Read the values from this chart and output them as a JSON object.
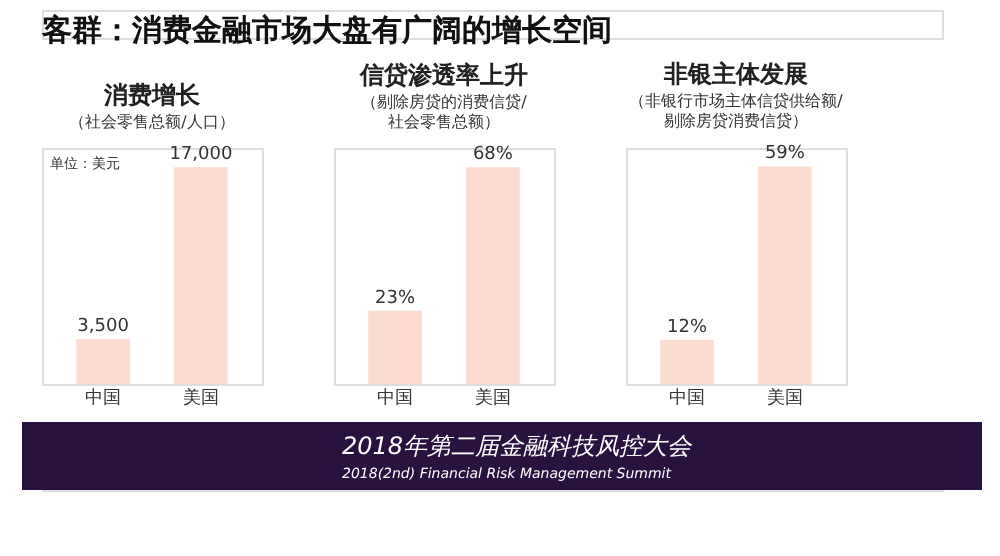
{
  "chart_data": [
    {
      "type": "bar",
      "title": "消费增长",
      "subtitle": "（社会零售总额/人口）",
      "categories": [
        "中国",
        "美国"
      ],
      "values": [
        3500,
        17000
      ],
      "value_labels": [
        "3,500",
        "17,000"
      ],
      "color": "#fcdcd0",
      "annotations": [
        "客群：消费金融市场大盘有广阔的增长空间",
        "单位：美元",
        "2018年第二届金融科技风控大会",
        "2018(2nd) Financial Risk Management Summit"
      ],
      "ylim": [
        0,
        18500
      ],
      "tick_labels": "x"
    },
    {
      "type": "bar",
      "title": "信贷渗透率上升",
      "subtitle": "（剔除房贷的消费信贷/\n社会零售总额）",
      "categories": [
        "中国",
        "美国"
      ],
      "values": [
        23,
        68
      ],
      "value_labels": [
        "23%",
        "68%"
      ],
      "color": "#fcdcd0",
      "ylim": [
        0,
        74
      ],
      "tick_labels": "x"
    },
    {
      "type": "bar",
      "title": "非银主体发展",
      "subtitle": "（非银行市场主体信贷供给额/\n剔除房贷消费信贷）",
      "categories": [
        "中国",
        "美国"
      ],
      "values": [
        12,
        59
      ],
      "value_labels": [
        "12%",
        "59%"
      ],
      "color": "#fcdcd0",
      "ylim": [
        0,
        64
      ],
      "tick_labels": "x"
    }
  ]
}
